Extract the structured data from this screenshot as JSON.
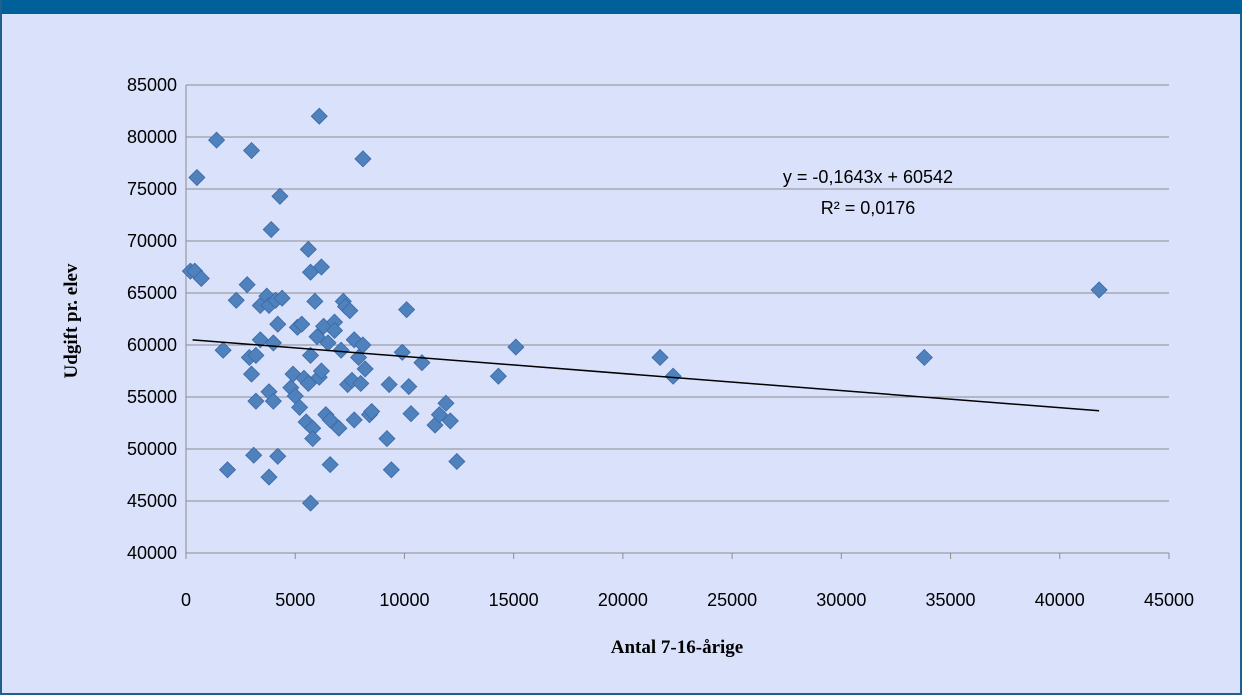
{
  "chart_data": {
    "type": "scatter",
    "title": "",
    "xlabel": "Antal 7-16-årige",
    "ylabel": "Udgift pr. elev",
    "xlim": [
      0,
      45000
    ],
    "ylim": [
      40000,
      85000
    ],
    "x_ticks": [
      "0",
      "5000",
      "10000",
      "15000",
      "20000",
      "25000",
      "30000",
      "35000",
      "40000",
      "45000"
    ],
    "y_ticks": [
      "40000",
      "45000",
      "50000",
      "55000",
      "60000",
      "65000",
      "70000",
      "75000",
      "80000",
      "85000"
    ],
    "grid": "horizontal",
    "marker_color": "#4f81bd",
    "trendline": {
      "slope": -0.1643,
      "intercept": 60542,
      "x_range": [
        300,
        41800
      ],
      "equation": "y = -0,1643x + 60542",
      "r_squared": "R² = 0,0176",
      "color": "#000000"
    },
    "points": [
      [
        200,
        67100
      ],
      [
        400,
        67100
      ],
      [
        500,
        76100
      ],
      [
        700,
        66400
      ],
      [
        1400,
        79700
      ],
      [
        1700,
        59500
      ],
      [
        1900,
        48000
      ],
      [
        2300,
        64300
      ],
      [
        2800,
        65800
      ],
      [
        2900,
        58800
      ],
      [
        3000,
        78700
      ],
      [
        3000,
        57200
      ],
      [
        3100,
        49400
      ],
      [
        3200,
        54600
      ],
      [
        3200,
        59000
      ],
      [
        3400,
        63800
      ],
      [
        3400,
        60500
      ],
      [
        3700,
        64700
      ],
      [
        3800,
        63800
      ],
      [
        3800,
        55500
      ],
      [
        3800,
        47300
      ],
      [
        3900,
        71100
      ],
      [
        4000,
        60200
      ],
      [
        4000,
        54600
      ],
      [
        4100,
        64300
      ],
      [
        4200,
        62000
      ],
      [
        4200,
        49300
      ],
      [
        4300,
        74300
      ],
      [
        4400,
        64500
      ],
      [
        4800,
        55900
      ],
      [
        4900,
        57200
      ],
      [
        5000,
        55100
      ],
      [
        5100,
        61700
      ],
      [
        5200,
        54000
      ],
      [
        5300,
        62000
      ],
      [
        5400,
        56800
      ],
      [
        5500,
        52600
      ],
      [
        5600,
        56300
      ],
      [
        5600,
        69200
      ],
      [
        5700,
        59000
      ],
      [
        5700,
        67000
      ],
      [
        5700,
        44800
      ],
      [
        5800,
        52000
      ],
      [
        5800,
        51000
      ],
      [
        5900,
        64200
      ],
      [
        6000,
        60800
      ],
      [
        6100,
        56900
      ],
      [
        6100,
        82000
      ],
      [
        6200,
        67500
      ],
      [
        6200,
        57500
      ],
      [
        6300,
        61800
      ],
      [
        6400,
        53300
      ],
      [
        6500,
        60200
      ],
      [
        6600,
        52800
      ],
      [
        6600,
        48500
      ],
      [
        6800,
        62200
      ],
      [
        6800,
        61400
      ],
      [
        7000,
        52000
      ],
      [
        7100,
        59500
      ],
      [
        7200,
        64200
      ],
      [
        7300,
        63700
      ],
      [
        7400,
        56200
      ],
      [
        7500,
        63300
      ],
      [
        7600,
        56600
      ],
      [
        7700,
        60500
      ],
      [
        7700,
        52800
      ],
      [
        7900,
        58800
      ],
      [
        8000,
        56300
      ],
      [
        8100,
        60000
      ],
      [
        8100,
        77900
      ],
      [
        8200,
        57700
      ],
      [
        8400,
        53300
      ],
      [
        8500,
        53600
      ],
      [
        9200,
        51000
      ],
      [
        9300,
        56200
      ],
      [
        9400,
        48000
      ],
      [
        9900,
        59300
      ],
      [
        10100,
        63400
      ],
      [
        10200,
        56000
      ],
      [
        10300,
        53400
      ],
      [
        10800,
        58300
      ],
      [
        11400,
        52300
      ],
      [
        11600,
        53300
      ],
      [
        11900,
        54400
      ],
      [
        12100,
        52700
      ],
      [
        12400,
        48800
      ],
      [
        14300,
        57000
      ],
      [
        15100,
        59800
      ],
      [
        21700,
        58800
      ],
      [
        22300,
        57000
      ],
      [
        33800,
        58800
      ],
      [
        41800,
        65300
      ]
    ]
  }
}
